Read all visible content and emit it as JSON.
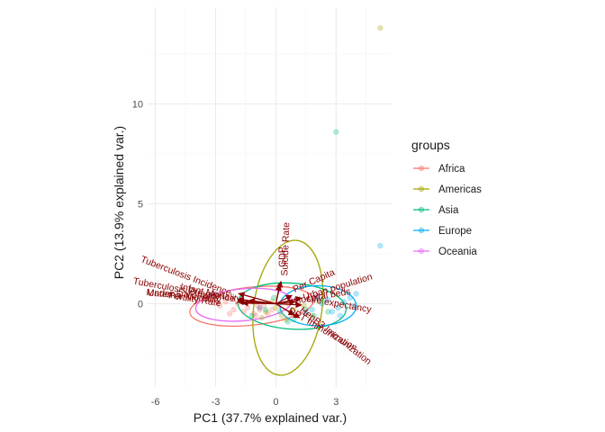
{
  "chart_data": {
    "type": "scatter",
    "subtype": "pca-biplot",
    "xlabel": "PC1 (37.7% explained var.)",
    "ylabel": "PC2 (13.9% explained var.)",
    "xlim": [
      -6.1,
      5.8
    ],
    "ylim": [
      -4.3,
      14.8
    ],
    "xticks": [
      -6,
      -3,
      0,
      3
    ],
    "xtick_labels": [
      "-6",
      "-3",
      "0",
      "3"
    ],
    "yticks": [
      0,
      5,
      10
    ],
    "ytick_labels": [
      "0",
      "5",
      "10"
    ],
    "grid": true,
    "legend": {
      "title": "groups",
      "position": "right"
    },
    "series": [
      {
        "name": "Africa",
        "color": "#F8766D",
        "points": [
          [
            -3.2,
            0.2
          ],
          [
            -2.8,
            -0.1
          ],
          [
            -2.5,
            0.1
          ],
          [
            -2.1,
            -0.3
          ],
          [
            -1.9,
            0.0
          ],
          [
            -1.6,
            -0.4
          ],
          [
            -1.4,
            -0.2
          ],
          [
            -1.2,
            0.1
          ],
          [
            -1.0,
            -0.6
          ],
          [
            -0.8,
            -0.3
          ],
          [
            -0.6,
            -0.1
          ],
          [
            -0.4,
            -0.5
          ],
          [
            -2.3,
            -0.5
          ],
          [
            -1.7,
            0.2
          ],
          [
            -1.1,
            -0.5
          ],
          [
            -0.2,
            -0.3
          ],
          [
            -3.5,
            0.3
          ],
          [
            -0.9,
            -0.1
          ]
        ],
        "ellipse": {
          "cx": -1.2,
          "cy": -0.12,
          "rx": 3.1,
          "ry": 0.95,
          "angle": -6
        }
      },
      {
        "name": "Americas",
        "color": "#A3A500",
        "points": [
          [
            5.2,
            13.8
          ],
          [
            -0.5,
            -0.4
          ],
          [
            0.3,
            -0.6
          ],
          [
            0.9,
            -0.3
          ],
          [
            1.4,
            -0.1
          ],
          [
            0.0,
            -0.2
          ],
          [
            -0.2,
            0.1
          ],
          [
            1.8,
            -0.6
          ],
          [
            0.6,
            0.0
          ],
          [
            2.2,
            0.1
          ],
          [
            -0.7,
            -0.7
          ],
          [
            0.5,
            -0.8
          ]
        ],
        "ellipse": {
          "cx": 0.6,
          "cy": -0.2,
          "rx": 1.7,
          "ry": 3.4,
          "angle": 8
        }
      },
      {
        "name": "Asia",
        "color": "#00BF7D",
        "points": [
          [
            3.0,
            8.6
          ],
          [
            -1.2,
            -0.6
          ],
          [
            -0.5,
            -0.3
          ],
          [
            0.2,
            -0.4
          ],
          [
            0.9,
            -0.8
          ],
          [
            1.5,
            -0.3
          ],
          [
            2.3,
            0.2
          ],
          [
            -0.1,
            0.3
          ],
          [
            0.6,
            -0.9
          ],
          [
            1.9,
            -0.6
          ],
          [
            -0.8,
            -0.2
          ],
          [
            2.6,
            -0.4
          ]
        ],
        "ellipse": {
          "cx": 0.8,
          "cy": -0.12,
          "rx": 2.7,
          "ry": 1.15,
          "angle": 4
        }
      },
      {
        "name": "Europe",
        "color": "#00B0F6",
        "points": [
          [
            5.2,
            2.9
          ],
          [
            1.8,
            -0.3
          ],
          [
            2.3,
            0.0
          ],
          [
            2.8,
            -0.4
          ],
          [
            3.1,
            -0.2
          ],
          [
            3.4,
            0.1
          ],
          [
            3.7,
            0.3
          ],
          [
            4.0,
            0.5
          ],
          [
            2.0,
            0.3
          ],
          [
            2.6,
            0.2
          ],
          [
            3.2,
            -0.6
          ],
          [
            1.5,
            -0.5
          ],
          [
            3.9,
            -0.1
          ]
        ],
        "ellipse": {
          "cx": 2.1,
          "cy": -0.1,
          "rx": 1.9,
          "ry": 1.0,
          "angle": 0
        }
      },
      {
        "name": "Oceania",
        "color": "#E76BF3",
        "points": [
          [
            -1.5,
            0.1
          ],
          [
            -0.8,
            -0.2
          ],
          [
            0.7,
            0.2
          ],
          [
            2.1,
            0.4
          ]
        ],
        "ellipse": {
          "cx": -1.6,
          "cy": -0.05,
          "rx": 2.4,
          "ry": 0.8,
          "angle": -5
        }
      }
    ],
    "loadings": [
      {
        "label": "Tuberculosis Incidence",
        "x": -5.8,
        "y": 1.6,
        "angle": 21
      },
      {
        "label": "Tuberculosis Prevalence",
        "x": -5.9,
        "y": 0.7,
        "angle": 10
      },
      {
        "label": "Infant Mortality",
        "x": -4.2,
        "y": 0.5,
        "angle": 12
      },
      {
        "label": "Under-5 Mortality",
        "x": -5.9,
        "y": 0.4,
        "angle": 3
      },
      {
        "label": "Maternal Mortality",
        "x": -5.9,
        "y": 0.3,
        "angle": 6
      },
      {
        "label": "Fertility Rate",
        "x": -5.2,
        "y": 0.1,
        "angle": 9
      },
      {
        "label": "Suicide Rate",
        "x": 0.8,
        "y": 3.5,
        "angle": -88
      },
      {
        "label": "GDP",
        "x": 0.6,
        "y": 3.0,
        "angle": -91
      },
      {
        "label": "Per Capita",
        "x": 2.5,
        "y": 1.3,
        "angle": -24
      },
      {
        "label": "Urban population",
        "x": 4.0,
        "y": 0.9,
        "angle": -17
      },
      {
        "label": "Hospital beds",
        "x": 3.0,
        "y": 0.3,
        "angle": -10
      },
      {
        "label": "Life expectancy",
        "x": 4.0,
        "y": -0.2,
        "angle": 10
      },
      {
        "label": "DPT Immunization",
        "x": 2.9,
        "y": -1.8,
        "angle": 30
      },
      {
        "label": "HepB3 Immunization",
        "x": 3.7,
        "y": -2.2,
        "angle": 38
      }
    ]
  }
}
